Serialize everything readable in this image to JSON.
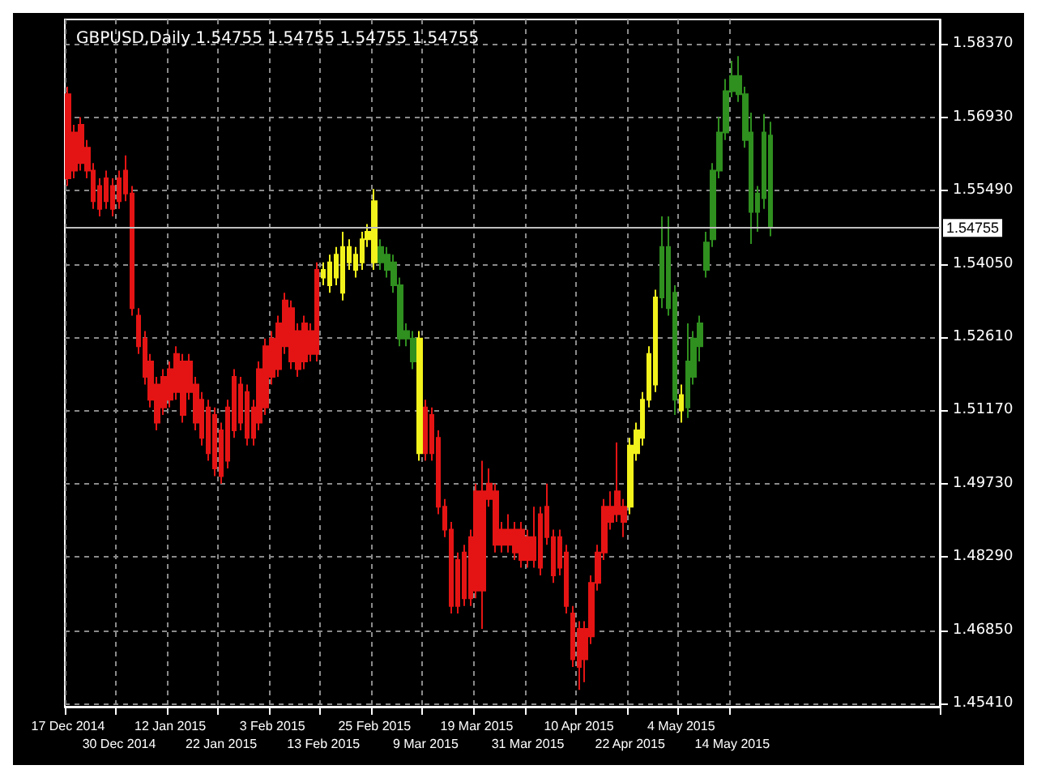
{
  "chart_data": {
    "type": "candlestick",
    "title": "GBPUSD,Daily 1.54755 1.54755 1.54755 1.54755",
    "categories": [
      "17 Dec 2014",
      null,
      null,
      null,
      null,
      null,
      null,
      null,
      "30 Dec 2014",
      null,
      null,
      null,
      null,
      null,
      null,
      null,
      "12 Jan 2015",
      null,
      null,
      null,
      null,
      null,
      null,
      null,
      "22 Jan 2015",
      null,
      null,
      null,
      null,
      null,
      null,
      null,
      "3 Feb 2015",
      null,
      null,
      null,
      null,
      null,
      null,
      null,
      "13 Feb 2015",
      null,
      null,
      null,
      null,
      null,
      null,
      null,
      "25 Feb 2015",
      null,
      null,
      null,
      null,
      null,
      null,
      null,
      "9 Mar 2015",
      null,
      null,
      null,
      null,
      null,
      null,
      null,
      "19 Mar 2015",
      null,
      null,
      null,
      null,
      null,
      null,
      null,
      "31 Mar 2015",
      null,
      null,
      null,
      null,
      null,
      null,
      null,
      "10 Apr 2015",
      null,
      null,
      null,
      null,
      null,
      null,
      null,
      "22 Apr 2015",
      null,
      null,
      null,
      null,
      null,
      null,
      null,
      "4 May 2015",
      null,
      null,
      null,
      null,
      null,
      null,
      null,
      "14 May 2015",
      null,
      null,
      null,
      null,
      null,
      null,
      null,
      null,
      null,
      null,
      null,
      null,
      null,
      null,
      null,
      null,
      null,
      null,
      null,
      null,
      null,
      null,
      null,
      null,
      null,
      null,
      null,
      null,
      null,
      null,
      null,
      null
    ],
    "ohlc": [
      [
        1.5738,
        1.5753,
        1.5558,
        1.5573
      ],
      [
        1.5663,
        1.5678,
        1.5573,
        1.5588
      ],
      [
        1.5678,
        1.5693,
        1.5588,
        1.5603
      ],
      [
        1.5633,
        1.5648,
        1.5573,
        1.5588
      ],
      [
        1.5588,
        1.5603,
        1.5513,
        1.5528
      ],
      [
        1.5558,
        1.5573,
        1.5498,
        1.5513
      ],
      [
        1.5573,
        1.5588,
        1.5513,
        1.5528
      ],
      [
        1.5558,
        1.5573,
        1.5498,
        1.5513
      ],
      [
        1.5573,
        1.5588,
        1.5513,
        1.5528
      ],
      [
        1.5588,
        1.5618,
        1.5528,
        1.5543
      ],
      [
        1.5543,
        1.5558,
        1.5303,
        1.5318
      ],
      [
        1.5303,
        1.5318,
        1.5228,
        1.5243
      ],
      [
        1.5258,
        1.5273,
        1.5168,
        1.5183
      ],
      [
        1.5213,
        1.5228,
        1.5123,
        1.5138
      ],
      [
        1.5168,
        1.5183,
        1.5078,
        1.5093
      ],
      [
        1.5183,
        1.5198,
        1.5108,
        1.5123
      ],
      [
        1.5198,
        1.5213,
        1.5123,
        1.5138
      ],
      [
        1.5228,
        1.5243,
        1.5138,
        1.5153
      ],
      [
        1.5213,
        1.5228,
        1.5093,
        1.5108
      ],
      [
        1.5213,
        1.5228,
        1.5138,
        1.5153
      ],
      [
        1.5168,
        1.5183,
        1.5078,
        1.5093
      ],
      [
        1.5138,
        1.5153,
        1.5048,
        1.5063
      ],
      [
        1.5123,
        1.5138,
        1.5018,
        1.5033
      ],
      [
        1.5108,
        1.5123,
        1.4988,
        1.5003
      ],
      [
        1.5078,
        1.5093,
        1.4973,
        1.4988
      ],
      [
        1.5123,
        1.5138,
        1.5003,
        1.5018
      ],
      [
        1.5183,
        1.5198,
        1.5063,
        1.5078
      ],
      [
        1.5168,
        1.5183,
        1.5078,
        1.5093
      ],
      [
        1.5153,
        1.5168,
        1.5048,
        1.5063
      ],
      [
        1.5123,
        1.5138,
        1.5048,
        1.5063
      ],
      [
        1.5198,
        1.5213,
        1.5078,
        1.5093
      ],
      [
        1.5243,
        1.5258,
        1.5108,
        1.5123
      ],
      [
        1.5258,
        1.5273,
        1.5168,
        1.5183
      ],
      [
        1.5288,
        1.5303,
        1.5183,
        1.5198
      ],
      [
        1.5333,
        1.5348,
        1.5228,
        1.5243
      ],
      [
        1.5318,
        1.5333,
        1.5198,
        1.5213
      ],
      [
        1.5273,
        1.5288,
        1.5183,
        1.5198
      ],
      [
        1.5288,
        1.5303,
        1.5198,
        1.5213
      ],
      [
        1.5273,
        1.5288,
        1.5213,
        1.5228
      ],
      [
        1.5393,
        1.5408,
        1.5213,
        1.5228
      ],
      [
        1.5378,
        1.5408,
        1.5363,
        1.5393
      ],
      [
        1.5363,
        1.5423,
        1.5348,
        1.5408
      ],
      [
        1.5378,
        1.5438,
        1.5363,
        1.5423
      ],
      [
        1.5348,
        1.5468,
        1.5333,
        1.5438
      ],
      [
        1.5408,
        1.5453,
        1.5393,
        1.5438
      ],
      [
        1.5393,
        1.5438,
        1.5378,
        1.5423
      ],
      [
        1.5408,
        1.5468,
        1.5393,
        1.5453
      ],
      [
        1.5453,
        1.5483,
        1.5438,
        1.5468
      ],
      [
        1.5408,
        1.5552,
        1.5393,
        1.5528
      ],
      [
        1.5438,
        1.5453,
        1.5393,
        1.5408
      ],
      [
        1.5423,
        1.5438,
        1.5378,
        1.5393
      ],
      [
        1.5408,
        1.5423,
        1.5348,
        1.5363
      ],
      [
        1.5363,
        1.5378,
        1.5243,
        1.5258
      ],
      [
        1.5273,
        1.5288,
        1.5243,
        1.5258
      ],
      [
        1.5258,
        1.5273,
        1.5198,
        1.5213
      ],
      [
        1.5033,
        1.5273,
        1.5018,
        1.5258
      ],
      [
        1.5123,
        1.5138,
        1.5018,
        1.5033
      ],
      [
        1.5108,
        1.5123,
        1.5018,
        1.5033
      ],
      [
        1.5063,
        1.5078,
        1.4913,
        1.4928
      ],
      [
        1.4928,
        1.4943,
        1.4868,
        1.4883
      ],
      [
        1.4883,
        1.4898,
        1.4718,
        1.4733
      ],
      [
        1.4823,
        1.4838,
        1.4718,
        1.4733
      ],
      [
        1.4838,
        1.4853,
        1.4733,
        1.4748
      ],
      [
        1.4868,
        1.4883,
        1.4733,
        1.4748
      ],
      [
        1.4958,
        1.4973,
        1.4748,
        1.4763
      ],
      [
        1.4958,
        1.5018,
        1.4688,
        1.4763
      ],
      [
        1.4973,
        1.5003,
        1.4928,
        1.4943
      ],
      [
        1.4958,
        1.4973,
        1.4838,
        1.4853
      ],
      [
        1.4883,
        1.4898,
        1.4838,
        1.4853
      ],
      [
        1.4883,
        1.4913,
        1.4838,
        1.4853
      ],
      [
        1.4883,
        1.4898,
        1.4823,
        1.4838
      ],
      [
        1.4883,
        1.4898,
        1.4808,
        1.4823
      ],
      [
        1.4868,
        1.4883,
        1.4808,
        1.4823
      ],
      [
        1.4868,
        1.4928,
        1.4808,
        1.4823
      ],
      [
        1.4913,
        1.4928,
        1.4793,
        1.4808
      ],
      [
        1.4928,
        1.4973,
        1.4853,
        1.4868
      ],
      [
        1.4868,
        1.4883,
        1.4778,
        1.4793
      ],
      [
        1.4868,
        1.4883,
        1.4793,
        1.4808
      ],
      [
        1.4838,
        1.4853,
        1.4718,
        1.4733
      ],
      [
        1.4718,
        1.4733,
        1.4613,
        1.4628
      ],
      [
        1.4688,
        1.4703,
        1.4568,
        1.4613
      ],
      [
        1.4688,
        1.4703,
        1.4583,
        1.4628
      ],
      [
        1.4778,
        1.4793,
        1.4658,
        1.4673
      ],
      [
        1.4838,
        1.4853,
        1.4763,
        1.4778
      ],
      [
        1.4928,
        1.4943,
        1.4823,
        1.4838
      ],
      [
        1.4928,
        1.4958,
        1.4883,
        1.4898
      ],
      [
        1.4958,
        1.5054,
        1.4898,
        1.4913
      ],
      [
        1.4928,
        1.4943,
        1.4868,
        1.4898
      ],
      [
        1.4928,
        1.5063,
        1.4913,
        1.5048
      ],
      [
        1.5033,
        1.5093,
        1.5018,
        1.5078
      ],
      [
        1.5063,
        1.5153,
        1.5048,
        1.5138
      ],
      [
        1.5138,
        1.5243,
        1.5123,
        1.5228
      ],
      [
        1.5168,
        1.5354,
        1.5153,
        1.5339
      ],
      [
        1.5339,
        1.5498,
        1.5318,
        1.5438
      ],
      [
        1.5438,
        1.5498,
        1.5303,
        1.5318
      ],
      [
        1.5348,
        1.5363,
        1.5108,
        1.5138
      ],
      [
        1.5117,
        1.5168,
        1.5093,
        1.5147
      ],
      [
        1.5123,
        1.5288,
        1.5102,
        1.5213
      ],
      [
        1.5183,
        1.5273,
        1.5168,
        1.5258
      ],
      [
        1.5243,
        1.5303,
        1.5213,
        1.5288
      ],
      [
        1.5393,
        1.5468,
        1.5378,
        1.5447
      ],
      [
        1.5453,
        1.5603,
        1.5438,
        1.5588
      ],
      [
        1.5588,
        1.5693,
        1.5573,
        1.5663
      ],
      [
        1.5663,
        1.5768,
        1.5648,
        1.5744
      ],
      [
        1.5744,
        1.5804,
        1.5732,
        1.5774
      ],
      [
        1.5774,
        1.5813,
        1.5723,
        1.5738
      ],
      [
        1.5738,
        1.5753,
        1.5633,
        1.5648
      ],
      [
        1.5663,
        1.5702,
        1.5444,
        1.5507
      ],
      [
        1.5507,
        1.5558,
        1.5468,
        1.5543
      ],
      [
        1.5534,
        1.5699,
        1.5513,
        1.5663
      ],
      [
        1.5657,
        1.5684,
        1.5459,
        1.5476
      ],
      null,
      null,
      null,
      null,
      null,
      null,
      null,
      null,
      null,
      null,
      null,
      null,
      null,
      null,
      null,
      null,
      null,
      null,
      null,
      null,
      null,
      null,
      null,
      null,
      null,
      null
    ],
    "colors": [
      "#e51414",
      "#e51414",
      "#e51414",
      "#e51414",
      "#e51414",
      "#e51414",
      "#e51414",
      "#e51414",
      "#e51414",
      "#e51414",
      "#e51414",
      "#e51414",
      "#e51414",
      "#e51414",
      "#e51414",
      "#e51414",
      "#e51414",
      "#e51414",
      "#e51414",
      "#e51414",
      "#e51414",
      "#e51414",
      "#e51414",
      "#e51414",
      "#e51414",
      "#e51414",
      "#e51414",
      "#e51414",
      "#e51414",
      "#e51414",
      "#e51414",
      "#e51414",
      "#e51414",
      "#e51414",
      "#e51414",
      "#e51414",
      "#e51414",
      "#e51414",
      "#e51414",
      "#e51414",
      "#f2f21c",
      "#f2f21c",
      "#f2f21c",
      "#f2f21c",
      "#f2f21c",
      "#f2f21c",
      "#f2f21c",
      "#f2f21c",
      "#f2f21c",
      "#2f8f1f",
      "#2f8f1f",
      "#2f8f1f",
      "#2f8f1f",
      "#2f8f1f",
      "#2f8f1f",
      "#f2f21c",
      "#e51414",
      "#e51414",
      "#e51414",
      "#e51414",
      "#e51414",
      "#e51414",
      "#e51414",
      "#e51414",
      "#e51414",
      "#e51414",
      "#e51414",
      "#e51414",
      "#e51414",
      "#e51414",
      "#e51414",
      "#e51414",
      "#e51414",
      "#e51414",
      "#e51414",
      "#e51414",
      "#e51414",
      "#e51414",
      "#e51414",
      "#e51414",
      "#e51414",
      "#e51414",
      "#e51414",
      "#e51414",
      "#e51414",
      "#e51414",
      "#e51414",
      "#e51414",
      "#f2f21c",
      "#f2f21c",
      "#f2f21c",
      "#f2f21c",
      "#f2f21c",
      "#2f8f1f",
      "#2f8f1f",
      "#2f8f1f",
      "#f2f21c",
      "#2f8f1f",
      "#2f8f1f",
      "#2f8f1f",
      "#2f8f1f",
      "#2f8f1f",
      "#2f8f1f",
      "#2f8f1f",
      "#2f8f1f",
      "#2f8f1f",
      "#2f8f1f",
      "#2f8f1f",
      "#2f8f1f",
      "#2f8f1f",
      "#2f8f1f",
      null,
      null,
      null,
      null,
      null,
      null,
      null,
      null,
      null,
      null,
      null,
      null,
      null,
      null,
      null,
      null,
      null,
      null,
      null,
      null,
      null,
      null,
      null,
      null,
      null,
      null
    ],
    "ylim": [
      1.4535,
      1.5885
    ],
    "yticks": [
      {
        "value": 1.5837,
        "label": "1.58370"
      },
      {
        "value": 1.5693,
        "label": "1.56930"
      },
      {
        "value": 1.5549,
        "label": "1.55490"
      },
      {
        "value": 1.5405,
        "label": "1.54050"
      },
      {
        "value": 1.5261,
        "label": "1.52610"
      },
      {
        "value": 1.5117,
        "label": "1.51170"
      },
      {
        "value": 1.4973,
        "label": "1.49730"
      },
      {
        "value": 1.4829,
        "label": "1.48290"
      },
      {
        "value": 1.4685,
        "label": "1.46850"
      },
      {
        "value": 1.4541,
        "label": "1.45410"
      }
    ],
    "ref_lines": [
      {
        "axis": "y",
        "value": 1.54755,
        "label": "1.54755",
        "color": "#c0c0c0"
      }
    ],
    "grid": true
  }
}
